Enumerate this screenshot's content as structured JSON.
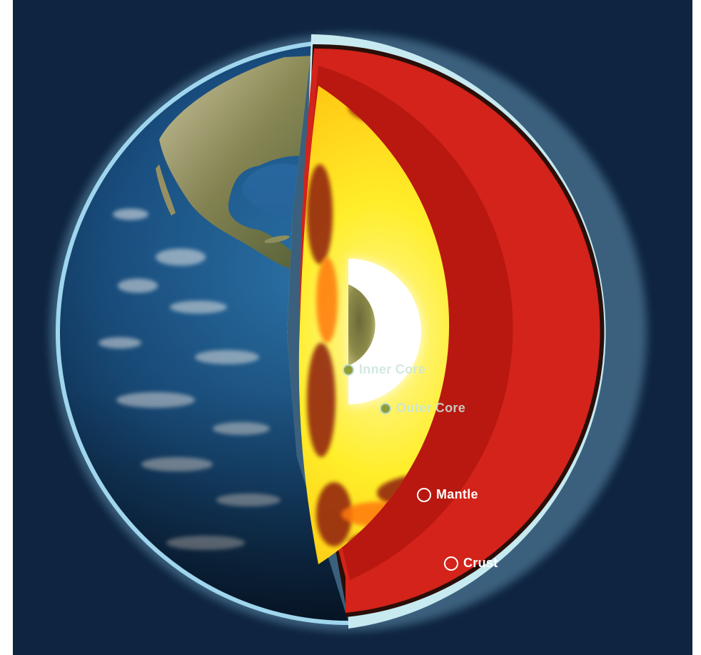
{
  "figure": {
    "layers": [
      {
        "key": "inner_core",
        "label": "Inner Core"
      },
      {
        "key": "outer_core",
        "label": "Outer Core"
      },
      {
        "key": "mantle",
        "label": "Mantle"
      },
      {
        "key": "crust",
        "label": "Crust"
      }
    ]
  },
  "colors": {
    "background": "#0e2440",
    "atmosphere_glow": "#8fd0f0",
    "ocean": "#1d5f96",
    "land": "#8a8a55",
    "crust": "#c7e9f0",
    "mantle_rim": "#d3231a",
    "outer_core": "#ffe400",
    "inner_core_shell": "#ffffff",
    "inner_core": "#7c7538"
  }
}
